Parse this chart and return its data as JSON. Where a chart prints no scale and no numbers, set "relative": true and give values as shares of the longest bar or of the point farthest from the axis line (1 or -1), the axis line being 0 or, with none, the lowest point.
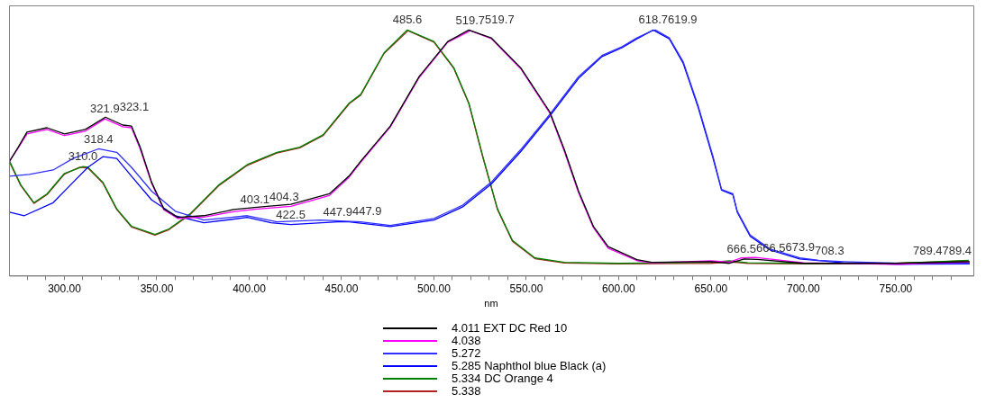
{
  "chart_data": {
    "type": "line",
    "relative": true,
    "xlabel": "nm",
    "xlim": [
      270,
      792
    ],
    "xticks": [
      {
        "value": 280,
        "label": null
      },
      {
        "value": 290,
        "label": null
      },
      {
        "value": 300,
        "label": "300.00"
      },
      {
        "value": 310,
        "label": null
      },
      {
        "value": 320,
        "label": null
      },
      {
        "value": 330,
        "label": null
      },
      {
        "value": 340,
        "label": null
      },
      {
        "value": 350,
        "label": "350.00"
      },
      {
        "value": 360,
        "label": null
      },
      {
        "value": 370,
        "label": null
      },
      {
        "value": 380,
        "label": null
      },
      {
        "value": 390,
        "label": null
      },
      {
        "value": 400,
        "label": "400.00"
      },
      {
        "value": 410,
        "label": null
      },
      {
        "value": 420,
        "label": null
      },
      {
        "value": 430,
        "label": null
      },
      {
        "value": 440,
        "label": null
      },
      {
        "value": 450,
        "label": "450.00"
      },
      {
        "value": 460,
        "label": null
      },
      {
        "value": 470,
        "label": null
      },
      {
        "value": 480,
        "label": null
      },
      {
        "value": 490,
        "label": null
      },
      {
        "value": 500,
        "label": "500.00"
      },
      {
        "value": 510,
        "label": null
      },
      {
        "value": 520,
        "label": null
      },
      {
        "value": 530,
        "label": null
      },
      {
        "value": 540,
        "label": null
      },
      {
        "value": 550,
        "label": "550.00"
      },
      {
        "value": 560,
        "label": null
      },
      {
        "value": 570,
        "label": null
      },
      {
        "value": 580,
        "label": null
      },
      {
        "value": 590,
        "label": null
      },
      {
        "value": 600,
        "label": "600.00"
      },
      {
        "value": 610,
        "label": null
      },
      {
        "value": 620,
        "label": null
      },
      {
        "value": 630,
        "label": null
      },
      {
        "value": 640,
        "label": null
      },
      {
        "value": 650,
        "label": "650.00"
      },
      {
        "value": 660,
        "label": null
      },
      {
        "value": 670,
        "label": null
      },
      {
        "value": 680,
        "label": null
      },
      {
        "value": 690,
        "label": null
      },
      {
        "value": 700,
        "label": "700.00"
      },
      {
        "value": 710,
        "label": null
      },
      {
        "value": 720,
        "label": null
      },
      {
        "value": 730,
        "label": null
      },
      {
        "value": 740,
        "label": null
      },
      {
        "value": 750,
        "label": "750.00"
      },
      {
        "value": 760,
        "label": null
      },
      {
        "value": 770,
        "label": null
      },
      {
        "value": 780,
        "label": null
      }
    ],
    "marker": "none",
    "legend": "bottom",
    "series": [
      {
        "name": "4.011 EXT DC Red 10",
        "color": "#000000",
        "x": [
          270.3,
          275,
          279.7,
          290.6,
          300,
          311.3,
          322.2,
          331.6,
          336.3,
          341,
          347.2,
          353.8,
          361.3,
          375.5,
          391.5,
          407,
          422.6,
          443.4,
          454,
          460.4,
          476.4,
          492,
          507.5,
          518.9,
          531,
          547,
          562.7,
          570.6,
          578.3,
          586.3,
          594.3,
          609.9,
          617.9,
          650,
          660,
          668,
          675,
          700,
          750,
          790
        ],
        "values": [
          0.466,
          0.523,
          0.584,
          0.602,
          0.577,
          0.595,
          0.645,
          0.613,
          0.609,
          0.523,
          0.38,
          0.272,
          0.237,
          0.244,
          0.269,
          0.28,
          0.29,
          0.333,
          0.405,
          0.466,
          0.609,
          0.81,
          0.953,
          1.0,
          0.968,
          0.846,
          0.667,
          0.513,
          0.344,
          0.201,
          0.118,
          0.065,
          0.054,
          0.057,
          0.05,
          0.068,
          0.066,
          0.05,
          0.05,
          0.057
        ]
      },
      {
        "name": "4.038",
        "color": "#ff00ff",
        "x": [
          270.3,
          275,
          279.7,
          290.6,
          300,
          311.3,
          321.9,
          331.6,
          336.3,
          341,
          347.2,
          353.8,
          361.3,
          375.5,
          391.5,
          403.1,
          422.6,
          443.4,
          454,
          460.4,
          476.4,
          492,
          507.5,
          519.7,
          531,
          547,
          562.7,
          570.6,
          578.3,
          586.3,
          594.3,
          609.9,
          617.9,
          650,
          660,
          666.5,
          673.9,
          700,
          750,
          790
        ],
        "values": [
          0.466,
          0.52,
          0.577,
          0.595,
          0.57,
          0.588,
          0.638,
          0.606,
          0.602,
          0.516,
          0.376,
          0.268,
          0.233,
          0.238,
          0.26,
          0.27,
          0.282,
          0.326,
          0.4,
          0.462,
          0.605,
          0.806,
          0.95,
          0.997,
          0.965,
          0.842,
          0.662,
          0.506,
          0.337,
          0.196,
          0.112,
          0.061,
          0.052,
          0.06,
          0.055,
          0.072,
          0.074,
          0.052,
          0.046,
          0.055
        ]
      },
      {
        "name": "5.272",
        "color": "#3030ff",
        "x": [
          270.3,
          281,
          293.9,
          304.7,
          318.4,
          328.3,
          336.3,
          347.2,
          360,
          375.5,
          399,
          415,
          438.6,
          460.4,
          476.4,
          500,
          515.6,
          531,
          547,
          562.7,
          578.3,
          591,
          601.9,
          609.9,
          617.9,
          619.9,
          627.4,
          634.9,
          643,
          651,
          655.7,
          661.8,
          664.2,
          671.2,
          682,
          698,
          708.3,
          721.7,
          752.8,
          790
        ],
        "values": [
          0.405,
          0.412,
          0.43,
          0.477,
          0.516,
          0.502,
          0.441,
          0.344,
          0.262,
          0.226,
          0.244,
          0.219,
          0.226,
          0.219,
          0.204,
          0.233,
          0.287,
          0.38,
          0.513,
          0.656,
          0.81,
          0.896,
          0.932,
          0.968,
          0.996,
          1.0,
          0.968,
          0.871,
          0.692,
          0.487,
          0.351,
          0.333,
          0.262,
          0.165,
          0.108,
          0.072,
          0.062,
          0.057,
          0.05,
          0.05
        ]
      },
      {
        "name": "5.285 Naphthol blue Black (a)",
        "color": "#0000ff",
        "x": [
          270.3,
          278.3,
          293.9,
          304.7,
          312.7,
          320.8,
          328.3,
          336.3,
          347.2,
          360,
          375.5,
          399,
          411.8,
          422.5,
          447.9,
          454,
          476.4,
          500,
          515.6,
          531,
          547,
          562.7,
          578.3,
          591,
          601.9,
          609.9,
          618.7,
          627.4,
          634.9,
          643,
          651,
          655.7,
          661.8,
          664.2,
          671.2,
          682,
          698,
          721.7,
          752.8,
          790
        ],
        "values": [
          0.258,
          0.244,
          0.297,
          0.38,
          0.441,
          0.484,
          0.477,
          0.405,
          0.308,
          0.244,
          0.215,
          0.237,
          0.215,
          0.208,
          0.219,
          0.219,
          0.2,
          0.226,
          0.28,
          0.372,
          0.505,
          0.649,
          0.803,
          0.892,
          0.928,
          0.964,
          1.0,
          0.964,
          0.865,
          0.685,
          0.48,
          0.348,
          0.33,
          0.258,
          0.16,
          0.104,
          0.068,
          0.052,
          0.046,
          0.048
        ]
      },
      {
        "name": "5.334 DC Orange 4",
        "color": "#008000",
        "x": [
          270.3,
          276.4,
          283.5,
          290.6,
          300,
          310,
          312.7,
          320.8,
          328.3,
          336.3,
          349,
          356.6,
          367.9,
          383.5,
          399,
          415,
          427.4,
          440,
          454.2,
          460.4,
          473,
          485.6,
          500,
          510.8,
          518.9,
          526.4,
          534.4,
          542.5,
          554.7,
          570.7,
          600,
          650,
          660,
          670,
          700,
          750,
          789.4
        ],
        "values": [
          0.466,
          0.369,
          0.297,
          0.333,
          0.416,
          0.444,
          0.441,
          0.38,
          0.272,
          0.201,
          0.168,
          0.19,
          0.251,
          0.369,
          0.452,
          0.502,
          0.523,
          0.573,
          0.703,
          0.738,
          0.907,
          1.0,
          0.953,
          0.846,
          0.703,
          0.487,
          0.272,
          0.143,
          0.072,
          0.054,
          0.05,
          0.054,
          0.06,
          0.052,
          0.05,
          0.05,
          0.062
        ]
      },
      {
        "name": "5.338",
        "color": "#b22222",
        "x": [
          270.3,
          276.4,
          283.5,
          290.6,
          300,
          308,
          312.7,
          320.8,
          328.3,
          336.3,
          349,
          356.6,
          367.9,
          383.5,
          399,
          415,
          427.4,
          440,
          454.2,
          460.4,
          473,
          486,
          500,
          510.8,
          518.9,
          526.4,
          534.4,
          542.5,
          554.7,
          570.7,
          600,
          650,
          660,
          670,
          700,
          750,
          789.4
        ],
        "values": [
          0.462,
          0.366,
          0.294,
          0.33,
          0.413,
          0.441,
          0.438,
          0.377,
          0.269,
          0.198,
          0.165,
          0.187,
          0.248,
          0.366,
          0.449,
          0.499,
          0.52,
          0.57,
          0.7,
          0.735,
          0.904,
          0.997,
          0.95,
          0.843,
          0.7,
          0.484,
          0.269,
          0.14,
          0.069,
          0.051,
          0.048,
          0.05,
          0.056,
          0.05,
          0.048,
          0.05,
          0.06
        ]
      }
    ],
    "annotations": [
      {
        "text": "321.9",
        "x": 321.9,
        "y": 0.638
      },
      {
        "text": "323.1",
        "x": 323.1,
        "y": 0.645
      },
      {
        "text": "318.4",
        "x": 318.4,
        "y": 0.516
      },
      {
        "text": "310.0",
        "x": 310,
        "y": 0.444
      },
      {
        "text": "403.1",
        "x": 403.1,
        "y": 0.27
      },
      {
        "text": "404.3",
        "x": 404.3,
        "y": 0.28
      },
      {
        "text": "422.5",
        "x": 422.5,
        "y": 0.208
      },
      {
        "text": "447.9",
        "x": 447.9,
        "y": 0.219
      },
      {
        "text": "447.9",
        "x": 447.9,
        "y": 0.222
      },
      {
        "text": "485.6",
        "x": 485.6,
        "y": 1.0
      },
      {
        "text": "519.7",
        "x": 519.7,
        "y": 0.997
      },
      {
        "text": "519.7",
        "x": 519.7,
        "y": 1.0
      },
      {
        "text": "618.7",
        "x": 618.7,
        "y": 1.0
      },
      {
        "text": "619.9",
        "x": 619.9,
        "y": 1.0
      },
      {
        "text": "666.5",
        "x": 666.5,
        "y": 0.068
      },
      {
        "text": "666.5",
        "x": 666.5,
        "y": 0.072
      },
      {
        "text": "673.9",
        "x": 673.9,
        "y": 0.074
      },
      {
        "text": "708.3",
        "x": 708.3,
        "y": 0.062
      },
      {
        "text": "789.4",
        "x": 789.4,
        "y": 0.062
      },
      {
        "text": "789.4",
        "x": 789.4,
        "y": 0.06
      }
    ]
  }
}
